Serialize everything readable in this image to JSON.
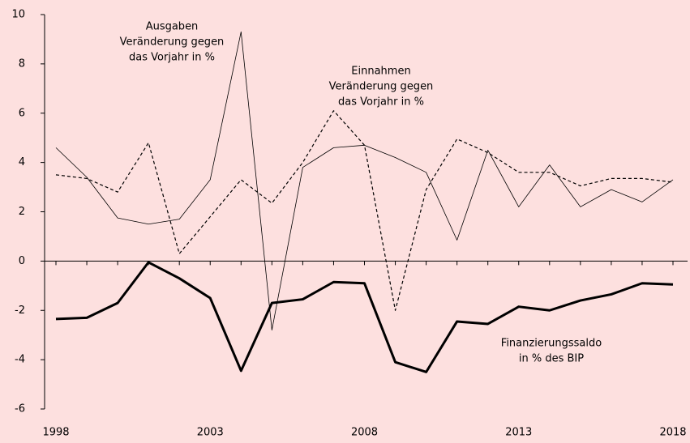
{
  "chart_data": {
    "type": "line",
    "x": [
      1998,
      1999,
      2000,
      2001,
      2002,
      2003,
      2004,
      2005,
      2006,
      2007,
      2008,
      2009,
      2010,
      2011,
      2012,
      2013,
      2014,
      2015,
      2016,
      2017,
      2018
    ],
    "xlim": [
      1998,
      2018
    ],
    "xticks": [
      1998,
      2003,
      2008,
      2013,
      2018
    ],
    "ylim": [
      -6,
      10
    ],
    "yticks": [
      -6,
      -4,
      -2,
      0,
      2,
      4,
      6,
      8,
      10
    ],
    "series": [
      {
        "color": "#000000",
        "style": "thin",
        "annotation": [
          "Ausgaben",
          "Veränderung gegen",
          "das Vorjahr in %"
        ],
        "values": [
          4.6,
          3.4,
          1.75,
          1.5,
          1.7,
          3.3,
          9.3,
          -2.8,
          3.8,
          4.6,
          4.7,
          4.2,
          3.6,
          0.85,
          4.5,
          2.2,
          3.9,
          2.2,
          2.9,
          2.4,
          3.3
        ]
      },
      {
        "color": "#000000",
        "style": "dashed",
        "annotation": [
          "Einnahmen",
          "Veränderung gegen",
          "das Vorjahr in %"
        ],
        "values": [
          3.5,
          3.35,
          2.8,
          4.8,
          0.3,
          1.8,
          3.3,
          2.35,
          4.0,
          6.1,
          4.7,
          -2.0,
          2.9,
          4.95,
          4.4,
          3.6,
          3.6,
          3.05,
          3.35,
          3.35,
          3.2
        ]
      },
      {
        "color": "#000000",
        "style": "thick",
        "annotation": [
          "Finanzierungssaldo",
          "in % des BIP"
        ],
        "values": [
          -2.35,
          -2.3,
          -1.7,
          -0.05,
          -0.7,
          -1.5,
          -4.45,
          -1.7,
          -1.55,
          -0.85,
          -0.9,
          -4.1,
          -4.5,
          -2.45,
          -2.55,
          -1.85,
          -2.0,
          -1.6,
          -1.35,
          -0.9,
          -0.95
        ]
      }
    ]
  }
}
